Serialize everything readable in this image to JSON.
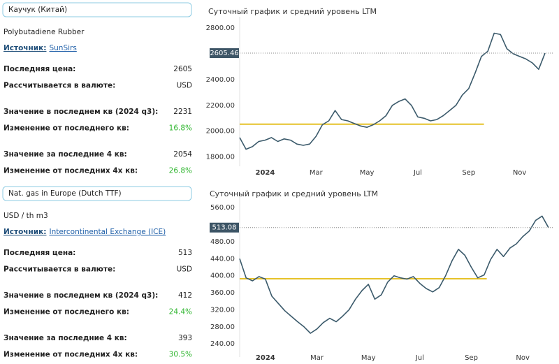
{
  "panels": [
    {
      "title": "Каучук (Китай)",
      "subtitle": "Polybutadiene Rubber",
      "source_label": "Источник:",
      "source": "SunSirs",
      "groups": [
        [
          {
            "label": "Последняя цена:",
            "value": "2605"
          },
          {
            "label": "Рассчитывается в валюте:",
            "value": "USD"
          }
        ],
        [
          {
            "label": "Значение в последнем кв (2024 q3):",
            "value": "2231"
          },
          {
            "label": "Изменение от последнего кв:",
            "value": "16.8%",
            "color": "#2db52d"
          }
        ],
        [
          {
            "label": "Значение за последние 4 кв:",
            "value": "2054"
          },
          {
            "label": "Изменение от последних 4х кв:",
            "value": "26.8%",
            "color": "#2db52d"
          }
        ]
      ]
    },
    {
      "title": "Nat. gas in Europe (Dutch TTF)",
      "subtitle": "USD / th m3",
      "source_label": "Источник:",
      "source": "Intercontinental Exchange (ICE)",
      "groups": [
        [
          {
            "label": "Последняя цена:",
            "value": "513"
          },
          {
            "label": "Рассчитывается в валюте:",
            "value": "USD"
          }
        ],
        [
          {
            "label": "Значение в последнем кв (2024 q3):",
            "value": "412"
          },
          {
            "label": "Изменение от последнего кв:",
            "value": "24.4%",
            "color": "#2db52d"
          }
        ],
        [
          {
            "label": "Значение за последние 4 кв:",
            "value": "393"
          },
          {
            "label": "Изменение от последних 4х кв:",
            "value": "30.5%",
            "color": "#2db52d"
          }
        ]
      ]
    }
  ],
  "chart_data": [
    {
      "type": "line",
      "title": "Суточный график и средний уровень LTM",
      "categories": [
        null,
        null,
        null,
        null,
        "2024",
        null,
        null,
        null,
        null,
        null,
        null,
        null,
        "Mar",
        null,
        null,
        null,
        null,
        null,
        null,
        null,
        "May",
        null,
        null,
        null,
        null,
        null,
        null,
        null,
        "Jul",
        null,
        null,
        null,
        null,
        null,
        null,
        null,
        "Sep",
        null,
        null,
        null,
        null,
        null,
        null,
        null,
        "Nov",
        null,
        null,
        null,
        null
      ],
      "series": [
        {
          "color": "#3b5a6b",
          "values": [
            1950,
            1860,
            1880,
            1920,
            1930,
            1950,
            1920,
            1940,
            1930,
            1900,
            1890,
            1900,
            1960,
            2050,
            2080,
            2160,
            2090,
            2080,
            2060,
            2040,
            2030,
            2050,
            2080,
            2120,
            2200,
            2230,
            2250,
            2200,
            2110,
            2100,
            2080,
            2090,
            2120,
            2160,
            2200,
            2280,
            2330,
            2450,
            2580,
            2620,
            2760,
            2750,
            2640,
            2600,
            2580,
            2560,
            2530,
            2480,
            2605
          ]
        }
      ],
      "reference_line": {
        "value": 2054,
        "color": "#e6c229"
      },
      "last_value": {
        "value": 2605.46,
        "label": "2605.46"
      },
      "ylim": [
        1760,
        2855
      ],
      "yticks": [
        {
          "value": 1800,
          "label": "1800.00"
        },
        {
          "value": 2000,
          "label": "2000.00"
        },
        {
          "value": 2200,
          "label": "2200.00"
        },
        {
          "value": 2400,
          "label": "2400.00"
        },
        {
          "value": 2800,
          "label": "2800.00"
        }
      ],
      "grid": false
    },
    {
      "type": "line",
      "title": "Суточный график и средний уровень LTM",
      "categories": [
        null,
        null,
        null,
        null,
        "2024",
        null,
        null,
        null,
        null,
        null,
        null,
        null,
        "Mar",
        null,
        null,
        null,
        null,
        null,
        null,
        null,
        "May",
        null,
        null,
        null,
        null,
        null,
        null,
        null,
        "Jul",
        null,
        null,
        null,
        null,
        null,
        null,
        null,
        "Sep",
        null,
        null,
        null,
        null,
        null,
        null,
        null,
        "Nov",
        null,
        null,
        null,
        null
      ],
      "series": [
        {
          "color": "#3b5a6b",
          "values": [
            440,
            395,
            388,
            398,
            392,
            352,
            335,
            318,
            305,
            292,
            280,
            265,
            275,
            290,
            300,
            292,
            305,
            320,
            345,
            365,
            380,
            345,
            355,
            385,
            400,
            395,
            392,
            398,
            382,
            370,
            362,
            372,
            400,
            435,
            462,
            448,
            420,
            395,
            402,
            438,
            462,
            445,
            465,
            475,
            492,
            505,
            530,
            540,
            513
          ]
        }
      ],
      "reference_line": {
        "value": 393,
        "color": "#e6c229"
      },
      "last_value": {
        "value": 513.08,
        "label": "513.08"
      },
      "ylim": [
        219,
        575
      ],
      "yticks": [
        {
          "value": 240,
          "label": "240.00"
        },
        {
          "value": 280,
          "label": "280.00"
        },
        {
          "value": 320,
          "label": "320.00"
        },
        {
          "value": 360,
          "label": "360.00"
        },
        {
          "value": 400,
          "label": "400.00"
        },
        {
          "value": 440,
          "label": "440.00"
        },
        {
          "value": 480,
          "label": "480.00"
        },
        {
          "value": 560,
          "label": "560.00"
        }
      ],
      "grid": false
    }
  ]
}
